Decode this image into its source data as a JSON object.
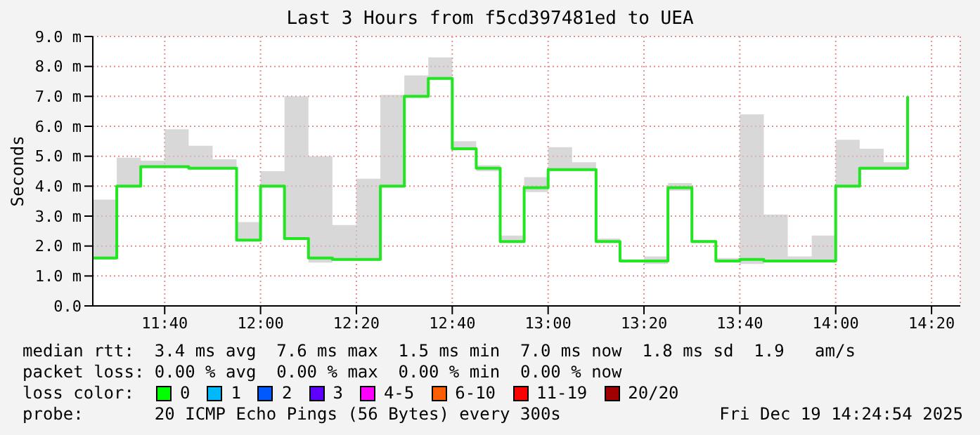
{
  "chart_data": {
    "type": "step",
    "title": "Last 3 Hours from f5cd397481ed to UEA",
    "ylabel": "Seconds",
    "x": [
      "2025-12-19T11:25",
      "2025-12-19T11:30",
      "2025-12-19T11:35",
      "2025-12-19T11:40",
      "2025-12-19T11:45",
      "2025-12-19T11:50",
      "2025-12-19T11:55",
      "2025-12-19T12:00",
      "2025-12-19T12:05",
      "2025-12-19T12:10",
      "2025-12-19T12:15",
      "2025-12-19T12:20",
      "2025-12-19T12:25",
      "2025-12-19T12:30",
      "2025-12-19T12:35",
      "2025-12-19T12:40",
      "2025-12-19T12:45",
      "2025-12-19T12:50",
      "2025-12-19T12:55",
      "2025-12-19T13:00",
      "2025-12-19T13:05",
      "2025-12-19T13:10",
      "2025-12-19T13:15",
      "2025-12-19T13:20",
      "2025-12-19T13:25",
      "2025-12-19T13:30",
      "2025-12-19T13:35",
      "2025-12-19T13:40",
      "2025-12-19T13:45",
      "2025-12-19T13:50",
      "2025-12-19T13:55",
      "2025-12-19T14:00",
      "2025-12-19T14:05",
      "2025-12-19T14:10",
      "2025-12-19T14:15"
    ],
    "series": [
      {
        "color": "#22e622",
        "values": [
          1.6,
          4.0,
          4.65,
          4.65,
          4.6,
          4.6,
          2.2,
          4.0,
          2.25,
          1.6,
          1.55,
          1.55,
          4.0,
          7.0,
          7.6,
          5.25,
          4.6,
          2.15,
          3.95,
          4.55,
          4.55,
          2.15,
          1.5,
          1.5,
          3.95,
          2.15,
          1.5,
          1.55,
          1.5,
          1.5,
          1.5,
          4.0,
          4.6,
          4.6,
          7.0
        ],
        "lower": [
          1.55,
          3.95,
          4.6,
          4.6,
          4.55,
          4.55,
          2.15,
          3.95,
          2.2,
          1.45,
          1.5,
          1.5,
          3.95,
          6.95,
          7.55,
          5.2,
          4.5,
          2.1,
          3.8,
          4.5,
          4.5,
          2.1,
          1.45,
          1.4,
          3.85,
          2.1,
          1.45,
          1.4,
          1.45,
          1.45,
          1.45,
          3.95,
          4.55,
          4.55,
          6.95
        ],
        "upper": [
          3.55,
          4.95,
          4.85,
          5.9,
          5.35,
          4.9,
          2.8,
          4.5,
          7.0,
          5.0,
          2.7,
          4.25,
          7.05,
          7.7,
          8.3,
          5.5,
          4.7,
          2.35,
          4.3,
          5.3,
          4.8,
          2.25,
          1.55,
          1.65,
          4.1,
          2.2,
          1.6,
          6.4,
          3.05,
          1.65,
          2.35,
          5.55,
          5.25,
          4.8,
          7.15
        ]
      }
    ],
    "xlim": [
      "2025-12-19T11:25",
      "2025-12-19T14:26"
    ],
    "xticks": [
      {
        "value": "2025-12-19T11:40",
        "label": "11:40"
      },
      {
        "value": "2025-12-19T12:00",
        "label": "12:00"
      },
      {
        "value": "2025-12-19T12:20",
        "label": "12:20"
      },
      {
        "value": "2025-12-19T12:40",
        "label": "12:40"
      },
      {
        "value": "2025-12-19T13:00",
        "label": "13:00"
      },
      {
        "value": "2025-12-19T13:20",
        "label": "13:20"
      },
      {
        "value": "2025-12-19T13:40",
        "label": "13:40"
      },
      {
        "value": "2025-12-19T14:00",
        "label": "14:00"
      },
      {
        "value": "2025-12-19T14:20",
        "label": "14:20"
      }
    ],
    "ylim": [
      0,
      9
    ],
    "yticks": [
      {
        "value": 0,
        "label": "0.0"
      },
      {
        "value": 1,
        "label": "1.0 m"
      },
      {
        "value": 2,
        "label": "2.0 m"
      },
      {
        "value": 3,
        "label": "3.0 m"
      },
      {
        "value": 4,
        "label": "4.0 m"
      },
      {
        "value": 5,
        "label": "5.0 m"
      },
      {
        "value": 6,
        "label": "6.0 m"
      },
      {
        "value": 7,
        "label": "7.0 m"
      },
      {
        "value": 8,
        "label": "8.0 m"
      },
      {
        "value": 9,
        "label": "9.0 m"
      }
    ],
    "grid": true,
    "annotations": [
      "median rtt:  3.4 ms avg  7.6 ms max  1.5 ms min  7.0 ms now  1.8 ms sd  1.9   am/s",
      "packet loss: 0.00 % avg  0.00 % max  0.00 % min  0.00 % now",
      "loss color:",
      "0",
      "1",
      "2",
      "3",
      "4-5",
      "6-10",
      "11-19",
      "20/20",
      "probe:       20 ICMP Echo Pings (56 Bytes) every 300s",
      "Fri Dec 19 14:24:54 2025"
    ]
  }
}
